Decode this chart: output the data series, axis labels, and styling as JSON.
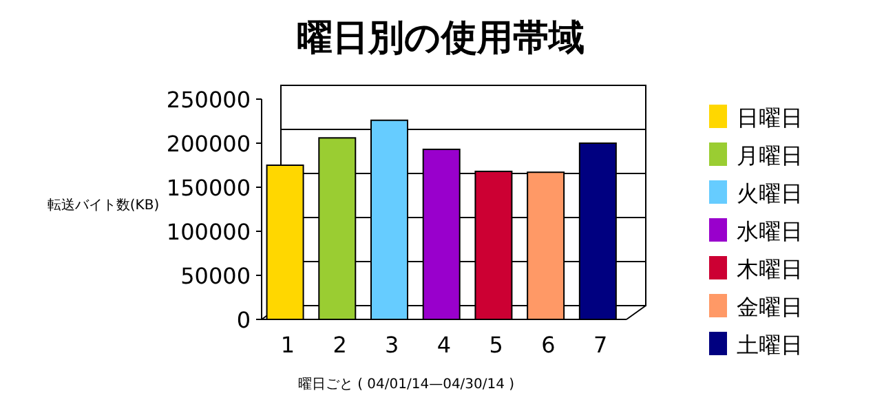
{
  "chart_data": {
    "type": "bar",
    "title": "曜日別の使用帯域",
    "xlabel": "曜日ごと ( 04/01/14—04/30/14 )",
    "ylabel": "転送バイト数(KB)",
    "categories": [
      "1",
      "2",
      "3",
      "4",
      "5",
      "6",
      "7"
    ],
    "series": [
      {
        "name": "日曜日",
        "color": "#ffd700",
        "values": [
          175000,
          null,
          null,
          null,
          null,
          null,
          null
        ]
      },
      {
        "name": "月曜日",
        "color": "#9acd32",
        "values": [
          null,
          206000,
          null,
          null,
          null,
          null,
          null
        ]
      },
      {
        "name": "火曜日",
        "color": "#66ccff",
        "values": [
          null,
          null,
          226000,
          null,
          null,
          null,
          null
        ]
      },
      {
        "name": "水曜日",
        "color": "#9900cc",
        "values": [
          null,
          null,
          null,
          193000,
          null,
          null,
          null
        ]
      },
      {
        "name": "木曜日",
        "color": "#cc0033",
        "values": [
          null,
          null,
          null,
          null,
          168000,
          null,
          null
        ]
      },
      {
        "name": "金曜日",
        "color": "#ff9966",
        "values": [
          null,
          null,
          null,
          null,
          null,
          167000,
          null
        ]
      },
      {
        "name": "土曜日",
        "color": "#000080",
        "values": [
          null,
          null,
          null,
          null,
          null,
          null,
          200000
        ]
      }
    ],
    "ylim": [
      0,
      250000
    ],
    "yticks": [
      0,
      50000,
      100000,
      150000,
      200000,
      250000
    ],
    "grid": "y",
    "legend": "right"
  }
}
